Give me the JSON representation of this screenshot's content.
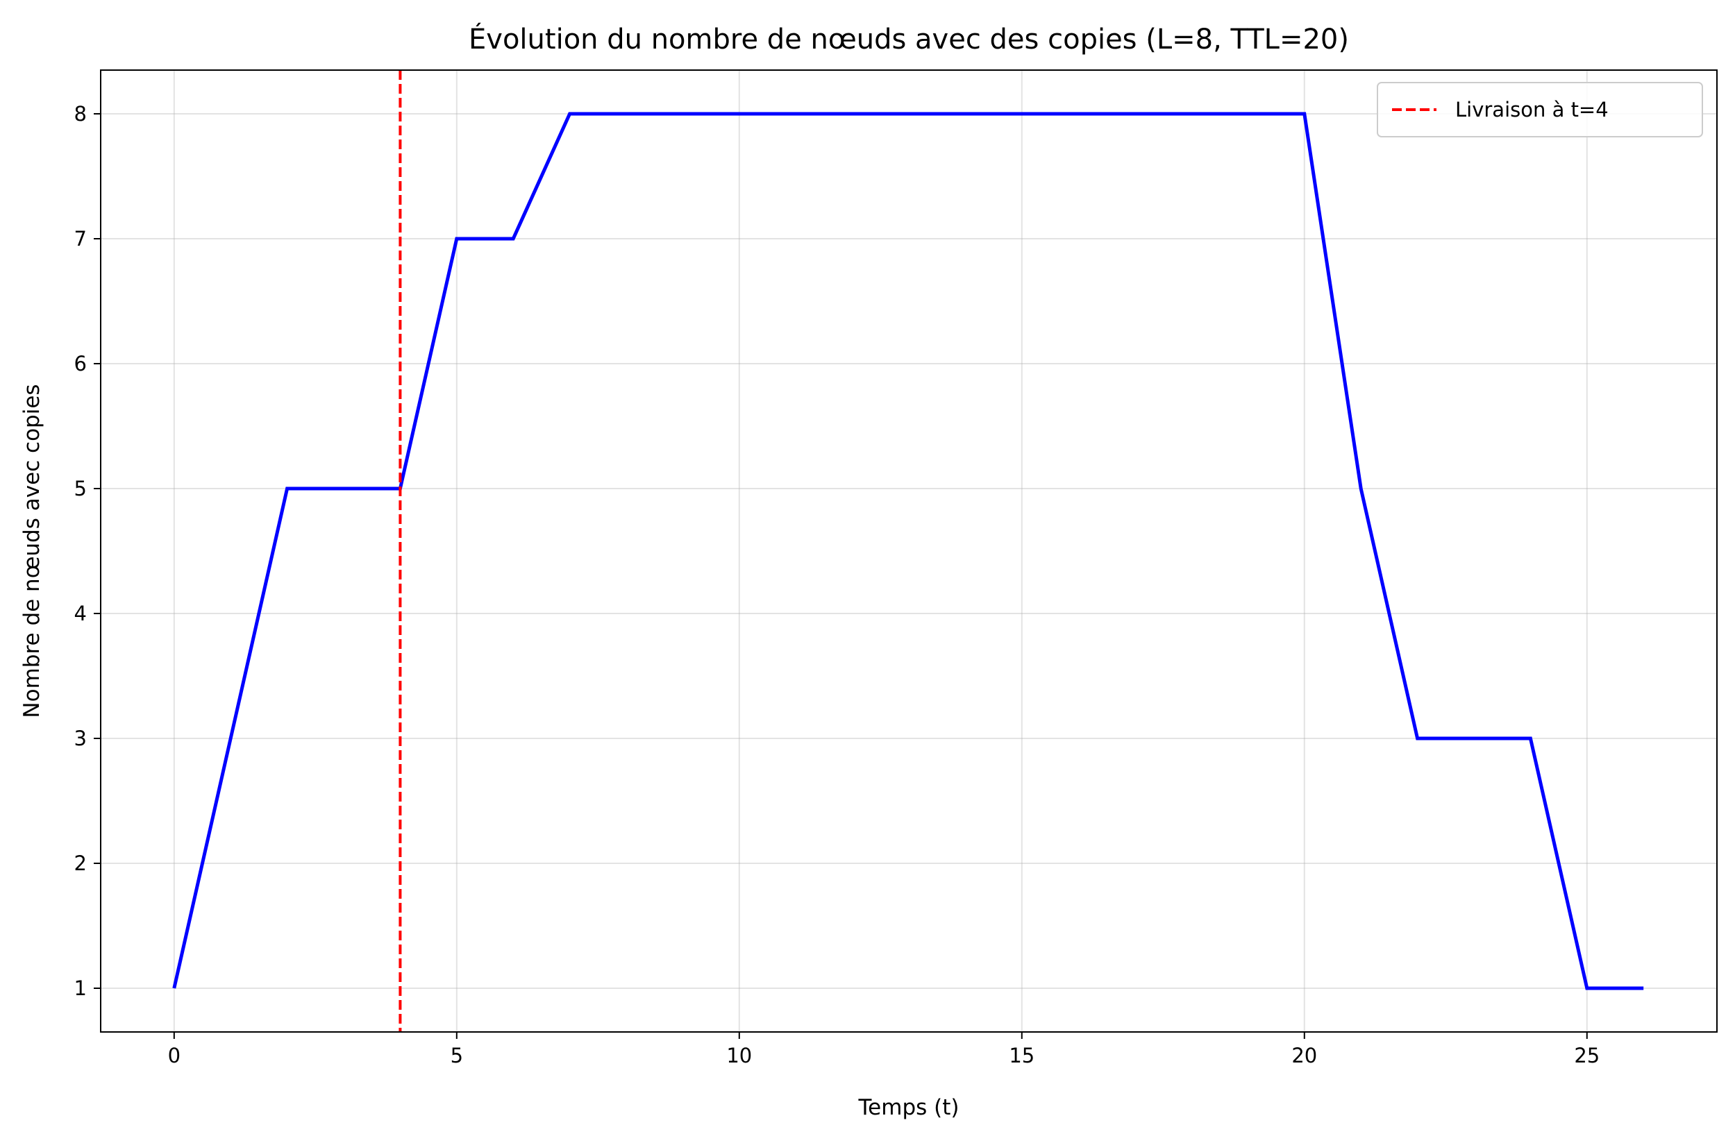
{
  "chart_data": {
    "type": "line",
    "title": "Évolution du nombre de nœuds avec des copies (L=8, TTL=20)",
    "xlabel": "Temps (t)",
    "ylabel": "Nombre de nœuds avec copies",
    "xlim": [
      -1.3,
      27.3
    ],
    "ylim": [
      0.65,
      8.35
    ],
    "xticks": [
      0,
      5,
      10,
      15,
      20,
      25
    ],
    "yticks": [
      1,
      2,
      3,
      4,
      5,
      6,
      7,
      8
    ],
    "grid": true,
    "legend_position": "top-right",
    "series": [
      {
        "x": [
          0,
          1,
          2,
          3,
          4,
          5,
          6,
          7,
          8,
          9,
          10,
          11,
          12,
          13,
          14,
          15,
          16,
          17,
          18,
          19,
          20,
          21,
          22,
          23,
          24,
          25,
          26
        ],
        "y": [
          1,
          3,
          5,
          5,
          5,
          7,
          7,
          8,
          8,
          8,
          8,
          8,
          8,
          8,
          8,
          8,
          8,
          8,
          8,
          8,
          8,
          5,
          3,
          3,
          3,
          1,
          1
        ],
        "color": "#0000ff"
      }
    ],
    "vlines": [
      {
        "x": 4,
        "label": "Livraison à t=4",
        "color": "#ff0000",
        "style": "dashed"
      }
    ]
  }
}
